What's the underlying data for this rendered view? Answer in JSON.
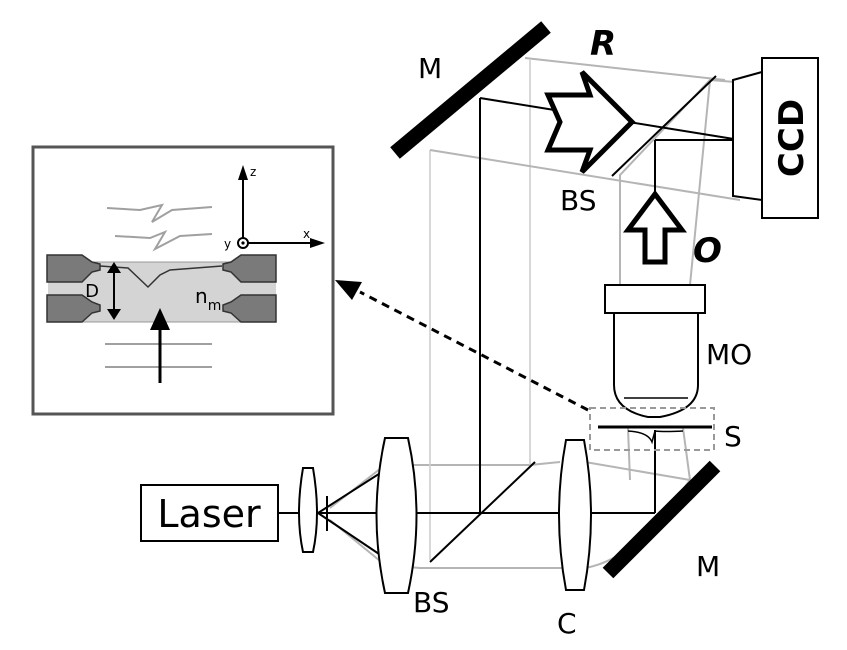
{
  "labels": {
    "laser": "Laser",
    "ccd": "CCD",
    "mirror_top": "M",
    "mirror_bottom": "M",
    "bs_top": "BS",
    "bs_bottom": "BS",
    "collimator": "C",
    "microscope_objective": "MO",
    "sample": "S",
    "reference_beam": "R",
    "object_beam": "O"
  },
  "inset": {
    "axis_z": "z",
    "axis_x": "x",
    "axis_y": "y",
    "thickness": "D",
    "medium_n": "n",
    "medium_sub": "m"
  },
  "colors": {
    "beam": "#000000",
    "beam_secondary": "#b0b0b0",
    "optic_fill": "#ffffff",
    "mirror": "#000000",
    "inset_border": "#555555",
    "electrode": "#7a7a7a",
    "medium": "#d4d4d4",
    "wave": "#a0a0a0"
  }
}
